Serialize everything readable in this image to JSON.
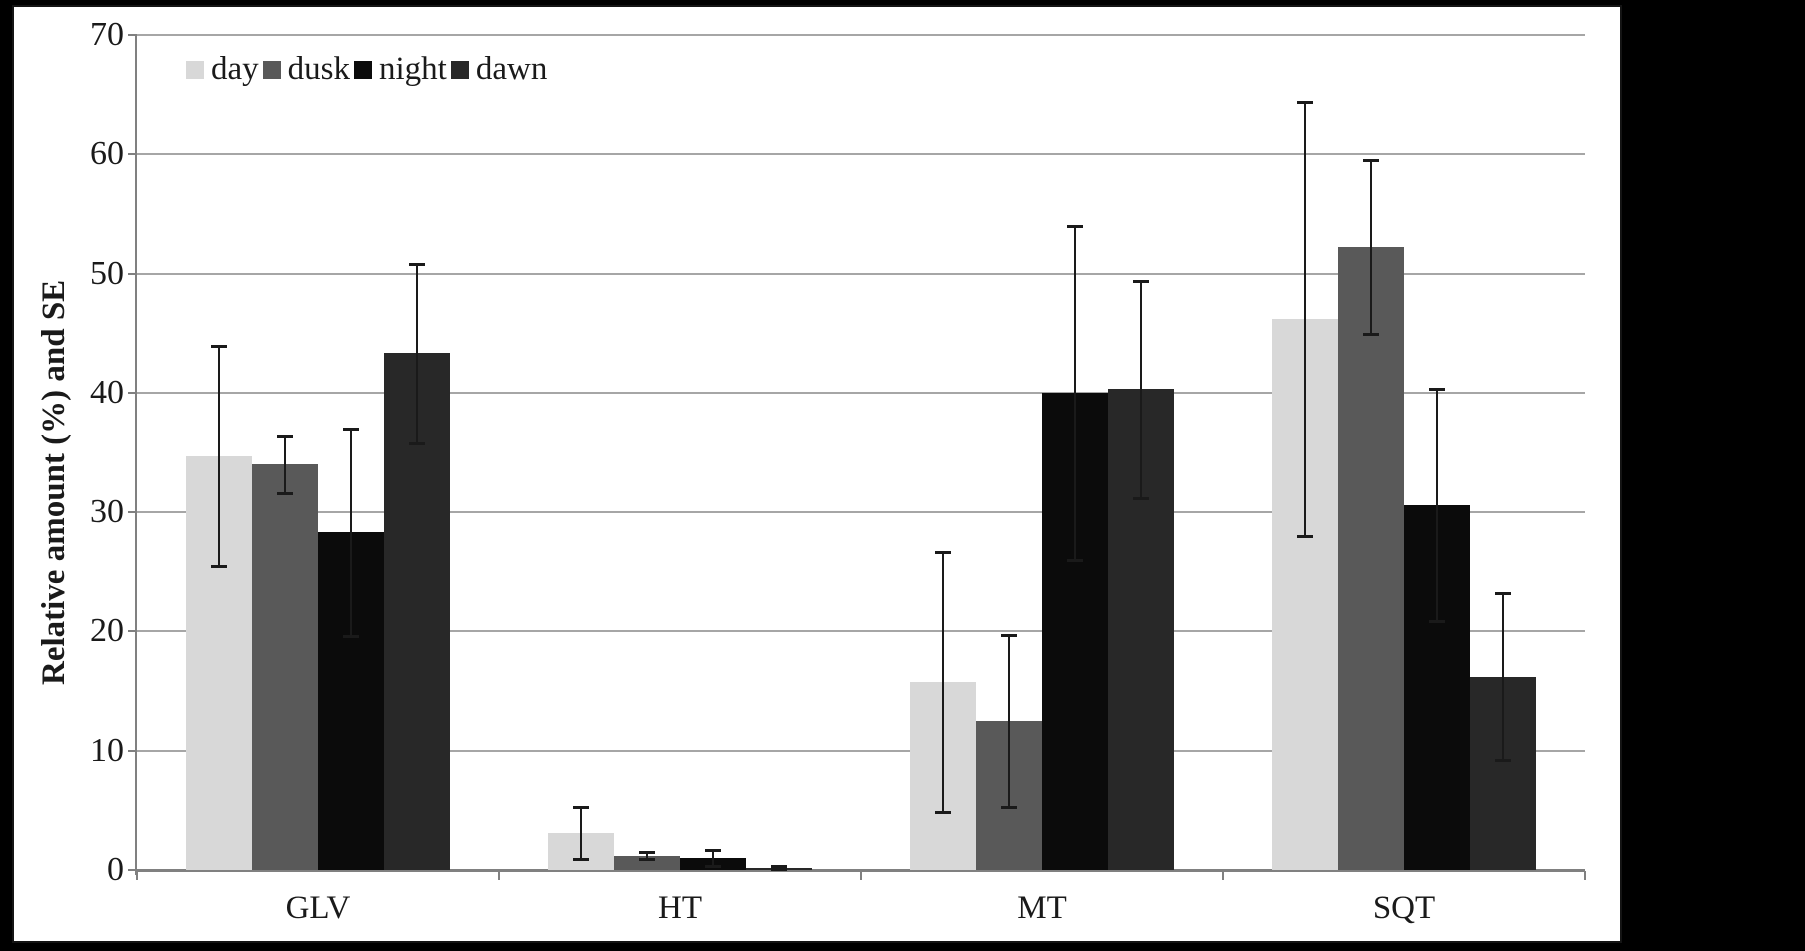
{
  "figure": {
    "canvas_background": "#000000",
    "plot_background": "#ffffff",
    "axis_color": "#808080",
    "gridline_color": "#a6a6a6",
    "error_bar_color": "#1a1a1a"
  },
  "chart_data": {
    "type": "bar",
    "title": "",
    "xlabel": "",
    "ylabel": "Relative amount (%) and SE",
    "categories": [
      "GLV",
      "HT",
      "MT",
      "SQT"
    ],
    "series": [
      {
        "name": "day",
        "color": "#d8d8d8",
        "values": [
          34.7,
          3.1,
          15.8,
          46.2
        ],
        "se": [
          9.2,
          2.2,
          10.9,
          18.2
        ]
      },
      {
        "name": "dusk",
        "color": "#595959",
        "values": [
          34.0,
          1.2,
          12.5,
          52.2
        ],
        "se": [
          2.4,
          0.3,
          7.2,
          7.3
        ]
      },
      {
        "name": "night",
        "color": "#0b0b0b",
        "values": [
          28.3,
          1.0,
          40.0,
          30.6
        ],
        "se": [
          8.7,
          0.7,
          14.0,
          9.7
        ]
      },
      {
        "name": "dawn",
        "color": "#282828",
        "values": [
          43.3,
          0.2,
          40.3,
          16.2
        ],
        "se": [
          7.5,
          0.1,
          9.1,
          7.0
        ]
      }
    ],
    "ylim": [
      0,
      70
    ],
    "yticks": [
      0,
      10,
      20,
      30,
      40,
      50,
      60,
      70
    ],
    "grid": "horizontal",
    "legend_position": "top-left-inside",
    "error_bars": "standard error, capped whiskers"
  }
}
